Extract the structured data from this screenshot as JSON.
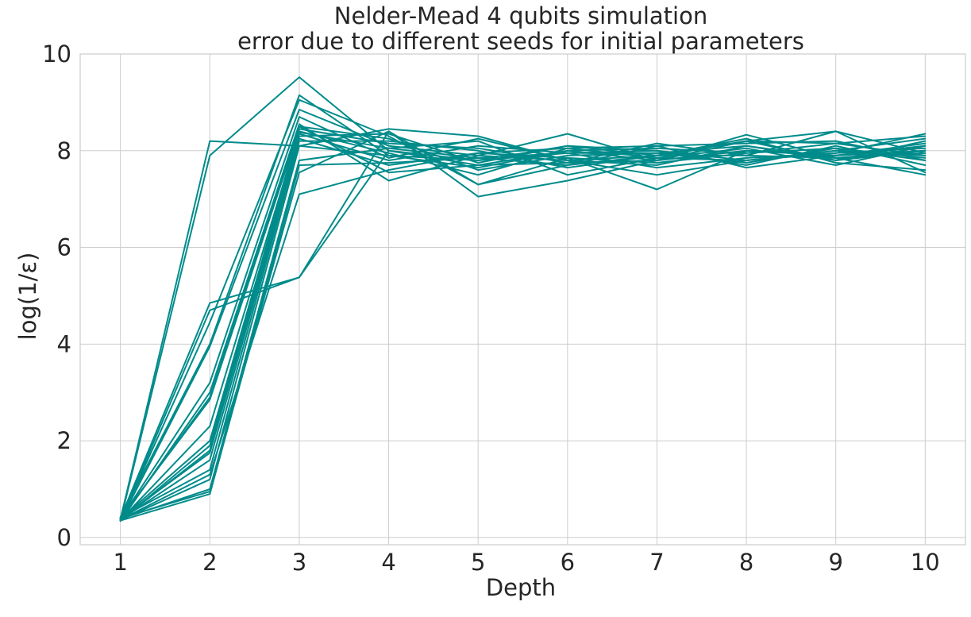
{
  "chart_data": {
    "type": "line",
    "title_line1": "Nelder-Mead 4 qubits simulation",
    "title_line2": "error due to different seeds for initial parameters",
    "xlabel": "Depth",
    "ylabel": "log(1/ε)",
    "x": [
      1,
      2,
      3,
      4,
      5,
      6,
      7,
      8,
      9,
      10
    ],
    "xlim": [
      0.55,
      10.45
    ],
    "ylim": [
      -0.15,
      10
    ],
    "xticks": [
      "1",
      "2",
      "3",
      "4",
      "5",
      "6",
      "7",
      "8",
      "9",
      "10"
    ],
    "yticks": [
      "0",
      "2",
      "4",
      "6",
      "8",
      "10"
    ],
    "ytick_values": [
      0,
      2,
      4,
      6,
      8,
      10
    ],
    "grid": true,
    "color": "#008b8b",
    "grid_color": "#cccccc",
    "series": [
      {
        "values": [
          0.38,
          8.2,
          8.1,
          8.45,
          8.3,
          7.8,
          7.9,
          8.2,
          8.15,
          8.3
        ]
      },
      {
        "values": [
          0.35,
          7.9,
          9.52,
          8.0,
          7.7,
          8.0,
          7.8,
          8.0,
          7.9,
          8.1
        ]
      },
      {
        "values": [
          0.4,
          4.85,
          5.38,
          8.4,
          7.05,
          7.38,
          7.8,
          8.33,
          7.85,
          7.5
        ]
      },
      {
        "values": [
          0.36,
          4.7,
          5.38,
          8.0,
          7.8,
          7.95,
          8.0,
          7.8,
          8.0,
          7.9
        ]
      },
      {
        "values": [
          0.42,
          4.0,
          9.15,
          7.9,
          7.8,
          8.1,
          7.9,
          8.2,
          7.8,
          8.0
        ]
      },
      {
        "values": [
          0.36,
          4.45,
          9.05,
          8.3,
          7.3,
          7.7,
          7.9,
          7.9,
          8.4,
          7.55
        ]
      },
      {
        "values": [
          0.35,
          3.95,
          8.85,
          8.1,
          7.9,
          7.8,
          7.5,
          7.8,
          7.95,
          8.35
        ]
      },
      {
        "values": [
          0.38,
          3.2,
          8.7,
          7.85,
          8.25,
          7.8,
          7.7,
          8.1,
          7.8,
          8.2
        ]
      },
      {
        "values": [
          0.34,
          3.0,
          8.55,
          7.38,
          7.9,
          8.35,
          7.8,
          8.0,
          7.9,
          8.0
        ]
      },
      {
        "values": [
          0.37,
          2.9,
          8.5,
          8.25,
          7.6,
          7.9,
          7.95,
          7.75,
          8.05,
          7.85
        ]
      },
      {
        "values": [
          0.4,
          2.85,
          8.45,
          8.15,
          8.05,
          7.75,
          8.15,
          7.9,
          7.85,
          7.95
        ]
      },
      {
        "values": [
          0.36,
          2.3,
          8.4,
          7.95,
          7.5,
          8.05,
          7.85,
          8.05,
          7.7,
          8.1
        ]
      },
      {
        "values": [
          0.38,
          2.0,
          8.38,
          8.05,
          7.85,
          7.7,
          8.1,
          8.15,
          8.2,
          7.8
        ]
      },
      {
        "values": [
          0.35,
          1.9,
          8.35,
          7.8,
          8.1,
          7.95,
          7.65,
          7.85,
          7.95,
          8.05
        ]
      },
      {
        "values": [
          0.39,
          1.75,
          8.3,
          8.35,
          7.75,
          8.1,
          8.0,
          7.7,
          8.1,
          7.7
        ]
      },
      {
        "values": [
          0.37,
          1.6,
          8.25,
          7.7,
          7.95,
          7.85,
          7.2,
          8.0,
          7.9,
          8.15
        ]
      },
      {
        "values": [
          0.41,
          1.4,
          8.2,
          8.2,
          8.0,
          7.65,
          7.9,
          8.25,
          7.75,
          7.6
        ]
      },
      {
        "values": [
          0.36,
          1.2,
          8.1,
          7.9,
          7.65,
          8.0,
          8.05,
          7.95,
          8.15,
          7.9
        ]
      },
      {
        "values": [
          0.38,
          1.0,
          7.8,
          8.05,
          8.2,
          7.5,
          7.85,
          7.8,
          8.0,
          8.25
        ]
      },
      {
        "values": [
          0.35,
          0.9,
          7.7,
          7.75,
          7.85,
          7.95,
          7.95,
          8.1,
          7.85,
          8.0
        ]
      },
      {
        "values": [
          0.4,
          0.95,
          7.55,
          8.4,
          7.3,
          7.85,
          7.75,
          7.95,
          8.05,
          7.8
        ]
      },
      {
        "values": [
          0.37,
          1.3,
          7.1,
          7.6,
          7.95,
          8.05,
          8.1,
          7.65,
          7.9,
          8.1
        ]
      },
      {
        "values": [
          0.36,
          1.8,
          8.5,
          7.55,
          7.7,
          7.75,
          7.8,
          8.2,
          8.4,
          7.95
        ]
      }
    ]
  }
}
